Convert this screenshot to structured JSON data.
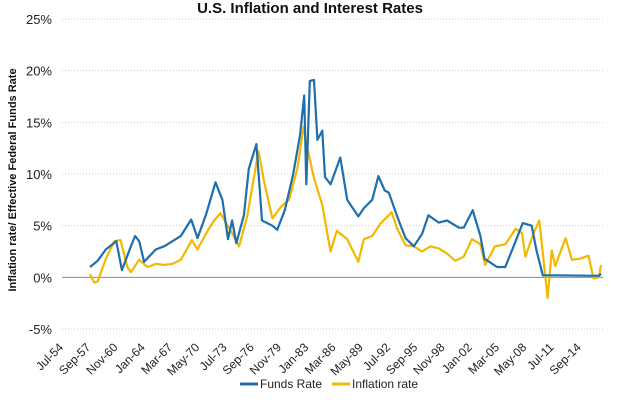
{
  "chart_data": {
    "type": "line",
    "title": "U.S. Inflation and Interest Rates",
    "ylabel": "Inflation rate/ Effective Federal Funds Rate",
    "xlabel": "",
    "ylim": [
      -5,
      25
    ],
    "yticks": [
      "-5%",
      "0%",
      "5%",
      "10%",
      "15%",
      "20%",
      "25%"
    ],
    "ytick_values": [
      -5,
      0,
      5,
      10,
      15,
      20,
      25
    ],
    "xticks": [
      "Jul-54",
      "Sep-57",
      "Nov-60",
      "Jan-64",
      "Mar-67",
      "May-70",
      "Jul-73",
      "Sep-76",
      "Nov-79",
      "Jan-83",
      "Mar-86",
      "May-89",
      "Jul-92",
      "Sep-95",
      "Nov-98",
      "Jan-02",
      "Mar-05",
      "May-08",
      "Jul-11",
      "Sep-14"
    ],
    "xtick_dates": [
      "1954-07",
      "1957-09",
      "1960-11",
      "1964-01",
      "1967-03",
      "1970-05",
      "1973-07",
      "1976-09",
      "1979-11",
      "1983-01",
      "1986-03",
      "1989-05",
      "1992-07",
      "1995-09",
      "1998-11",
      "2002-01",
      "2005-03",
      "2008-05",
      "2011-07",
      "2014-09"
    ],
    "xlim": [
      "1954-07",
      "2015-12"
    ],
    "grid": "horizontal dotted",
    "legend_position": "bottom",
    "series": [
      {
        "name": "Funds Rate",
        "color": "#1f6fad",
        "points": [
          [
            "1954-07",
            1.0
          ],
          [
            "1955-06",
            1.6
          ],
          [
            "1956-06",
            2.7
          ],
          [
            "1957-09",
            3.5
          ],
          [
            "1958-05",
            0.7
          ],
          [
            "1959-06",
            3.0
          ],
          [
            "1959-12",
            4.0
          ],
          [
            "1960-06",
            3.5
          ],
          [
            "1961-01",
            1.5
          ],
          [
            "1962-06",
            2.7
          ],
          [
            "1963-06",
            3.0
          ],
          [
            "1964-06",
            3.5
          ],
          [
            "1965-06",
            4.0
          ],
          [
            "1966-09",
            5.6
          ],
          [
            "1967-06",
            3.8
          ],
          [
            "1968-06",
            6.0
          ],
          [
            "1969-08",
            9.2
          ],
          [
            "1970-06",
            7.5
          ],
          [
            "1971-02",
            3.7
          ],
          [
            "1971-08",
            5.5
          ],
          [
            "1972-02",
            3.3
          ],
          [
            "1973-01",
            6.0
          ],
          [
            "1973-08",
            10.5
          ],
          [
            "1974-07",
            12.9
          ],
          [
            "1975-03",
            5.5
          ],
          [
            "1976-06",
            5.0
          ],
          [
            "1977-01",
            4.6
          ],
          [
            "1977-12",
            6.5
          ],
          [
            "1978-12",
            10.0
          ],
          [
            "1979-10",
            13.8
          ],
          [
            "1980-04",
            17.6
          ],
          [
            "1980-07",
            9.0
          ],
          [
            "1980-12",
            19.0
          ],
          [
            "1981-06",
            19.1
          ],
          [
            "1981-11",
            13.3
          ],
          [
            "1982-06",
            14.2
          ],
          [
            "1982-10",
            9.7
          ],
          [
            "1983-06",
            9.0
          ],
          [
            "1984-08",
            11.6
          ],
          [
            "1985-06",
            7.5
          ],
          [
            "1986-10",
            5.9
          ],
          [
            "1987-06",
            6.7
          ],
          [
            "1988-06",
            7.5
          ],
          [
            "1989-03",
            9.8
          ],
          [
            "1989-12",
            8.4
          ],
          [
            "1990-06",
            8.2
          ],
          [
            "1991-06",
            5.9
          ],
          [
            "1992-06",
            3.8
          ],
          [
            "1993-06",
            3.0
          ],
          [
            "1994-06",
            4.2
          ],
          [
            "1995-03",
            6.0
          ],
          [
            "1996-06",
            5.3
          ],
          [
            "1997-06",
            5.5
          ],
          [
            "1998-11",
            4.8
          ],
          [
            "1999-06",
            4.8
          ],
          [
            "2000-07",
            6.5
          ],
          [
            "2001-06",
            4.0
          ],
          [
            "2001-12",
            1.8
          ],
          [
            "2003-06",
            1.0
          ],
          [
            "2004-06",
            1.0
          ],
          [
            "2005-06",
            3.0
          ],
          [
            "2006-07",
            5.25
          ],
          [
            "2007-08",
            5.0
          ],
          [
            "2008-03",
            2.6
          ],
          [
            "2008-12",
            0.2
          ],
          [
            "2010-06",
            0.2
          ],
          [
            "2015-09",
            0.15
          ],
          [
            "2015-12",
            0.35
          ]
        ]
      },
      {
        "name": "Inflation rate",
        "color": "#f2b900",
        "points": [
          [
            "1954-07",
            0.3
          ],
          [
            "1955-01",
            -0.5
          ],
          [
            "1955-06",
            -0.4
          ],
          [
            "1956-06",
            1.8
          ],
          [
            "1957-06",
            3.5
          ],
          [
            "1958-03",
            3.6
          ],
          [
            "1959-01",
            1.0
          ],
          [
            "1959-06",
            0.5
          ],
          [
            "1960-06",
            1.7
          ],
          [
            "1961-06",
            1.0
          ],
          [
            "1962-06",
            1.3
          ],
          [
            "1963-06",
            1.2
          ],
          [
            "1964-06",
            1.3
          ],
          [
            "1965-06",
            1.7
          ],
          [
            "1966-10",
            3.6
          ],
          [
            "1967-06",
            2.7
          ],
          [
            "1968-06",
            4.2
          ],
          [
            "1969-06",
            5.5
          ],
          [
            "1970-03",
            6.2
          ],
          [
            "1971-06",
            4.5
          ],
          [
            "1972-06",
            3.0
          ],
          [
            "1973-06",
            6.0
          ],
          [
            "1974-10",
            12.2
          ],
          [
            "1975-06",
            9.3
          ],
          [
            "1976-06",
            5.7
          ],
          [
            "1977-06",
            6.8
          ],
          [
            "1978-06",
            7.5
          ],
          [
            "1979-06",
            10.5
          ],
          [
            "1980-03",
            14.6
          ],
          [
            "1980-07",
            13.0
          ],
          [
            "1981-06",
            9.6
          ],
          [
            "1982-06",
            7.0
          ],
          [
            "1983-03",
            3.6
          ],
          [
            "1983-06",
            2.5
          ],
          [
            "1984-03",
            4.5
          ],
          [
            "1985-06",
            3.7
          ],
          [
            "1986-10",
            1.5
          ],
          [
            "1987-06",
            3.7
          ],
          [
            "1988-06",
            4.0
          ],
          [
            "1989-06",
            5.2
          ],
          [
            "1990-10",
            6.3
          ],
          [
            "1991-06",
            4.7
          ],
          [
            "1992-06",
            3.1
          ],
          [
            "1993-06",
            3.0
          ],
          [
            "1994-06",
            2.5
          ],
          [
            "1995-06",
            3.0
          ],
          [
            "1996-06",
            2.8
          ],
          [
            "1997-06",
            2.3
          ],
          [
            "1998-06",
            1.6
          ],
          [
            "1999-06",
            2.0
          ],
          [
            "2000-06",
            3.7
          ],
          [
            "2001-06",
            3.2
          ],
          [
            "2002-01",
            1.2
          ],
          [
            "2003-03",
            3.0
          ],
          [
            "2004-06",
            3.2
          ],
          [
            "2005-09",
            4.7
          ],
          [
            "2006-06",
            4.3
          ],
          [
            "2006-11",
            2.0
          ],
          [
            "2007-11",
            4.3
          ],
          [
            "2008-07",
            5.5
          ],
          [
            "2009-07",
            -2.0
          ],
          [
            "2010-01",
            2.6
          ],
          [
            "2010-06",
            1.1
          ],
          [
            "2011-09",
            3.8
          ],
          [
            "2012-06",
            1.7
          ],
          [
            "2013-06",
            1.8
          ],
          [
            "2014-06",
            2.1
          ],
          [
            "2015-01",
            -0.1
          ],
          [
            "2015-09",
            0.0
          ],
          [
            "2015-12",
            1.2
          ]
        ]
      }
    ]
  }
}
